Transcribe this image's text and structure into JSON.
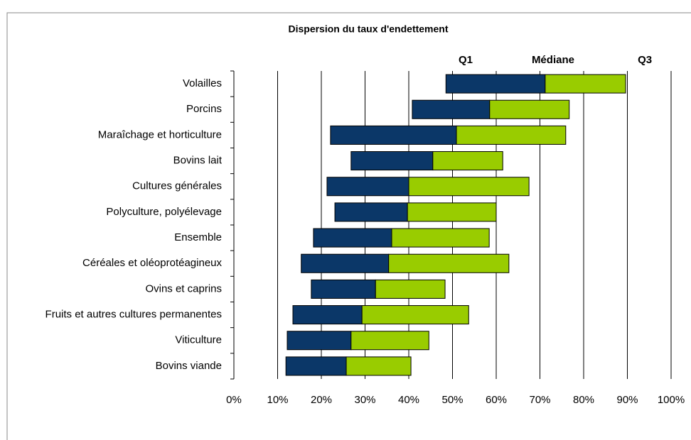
{
  "chart_data": {
    "type": "floating-bar",
    "title": "Dispersion du taux d'endettement",
    "categories": [
      "Volailles",
      "Porcins",
      "Maraîchage et horticulture",
      "Bovins lait",
      "Cultures générales",
      "Polyculture, polyélevage",
      "Ensemble",
      "Céréales et oléoprotéagineux",
      "Ovins et caprins",
      "Fruits et autres cultures permanentes",
      "Viticulture",
      "Bovins viande"
    ],
    "series": [
      {
        "name": "Q1",
        "color": "#0b3768",
        "values": [
          48.5,
          40.8,
          22.1,
          26.8,
          21.3,
          23.1,
          18.2,
          15.4,
          17.7,
          13.5,
          12.2,
          11.9
        ]
      },
      {
        "name": "Médiane",
        "color": "#99cc00",
        "values": [
          71.2,
          58.5,
          50.9,
          45.5,
          40.0,
          39.7,
          36.1,
          35.4,
          32.4,
          29.3,
          26.8,
          25.7
        ]
      },
      {
        "name": "Q3",
        "values": [
          89.6,
          76.7,
          75.9,
          61.5,
          67.5,
          60.0,
          58.4,
          62.9,
          48.3,
          53.7,
          44.6,
          40.5
        ]
      }
    ],
    "xlim": [
      0,
      100
    ],
    "xticks": [
      {
        "value": 0,
        "label": "0%"
      },
      {
        "value": 10,
        "label": "10%"
      },
      {
        "value": 20,
        "label": "20%"
      },
      {
        "value": 30,
        "label": "30%"
      },
      {
        "value": 40,
        "label": "40%"
      },
      {
        "value": 50,
        "label": "50%"
      },
      {
        "value": 60,
        "label": "60%"
      },
      {
        "value": 70,
        "label": "70%"
      },
      {
        "value": 80,
        "label": "80%"
      },
      {
        "value": 90,
        "label": "90%"
      },
      {
        "value": 100,
        "label": "100%"
      }
    ],
    "grid": true
  }
}
